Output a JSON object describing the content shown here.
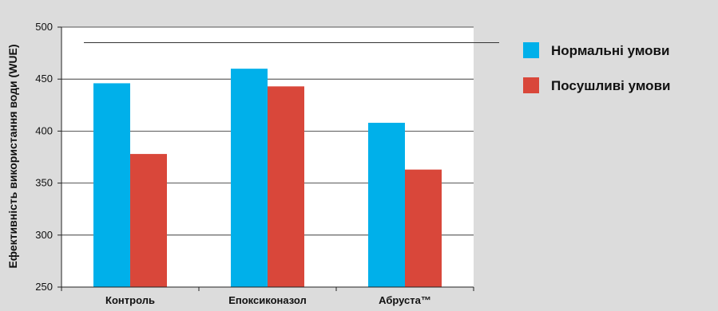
{
  "chart_data": {
    "type": "bar",
    "categories": [
      "Контроль",
      "Епоксиконазол",
      "Абруста™"
    ],
    "series": [
      {
        "name": "Нормальні умови",
        "color": "#00b0ea",
        "values": [
          446,
          460,
          408
        ]
      },
      {
        "name": "Посушливі умови",
        "color": "#d9473a",
        "values": [
          378,
          443,
          363
        ]
      }
    ],
    "title": "",
    "xlabel": "",
    "ylabel": "Ефективність використання води (WUE)",
    "ylim": [
      250,
      500
    ],
    "yticks": [
      250,
      300,
      350,
      400,
      450,
      500
    ],
    "grid": true,
    "legend": "right",
    "reference_line": 485
  }
}
